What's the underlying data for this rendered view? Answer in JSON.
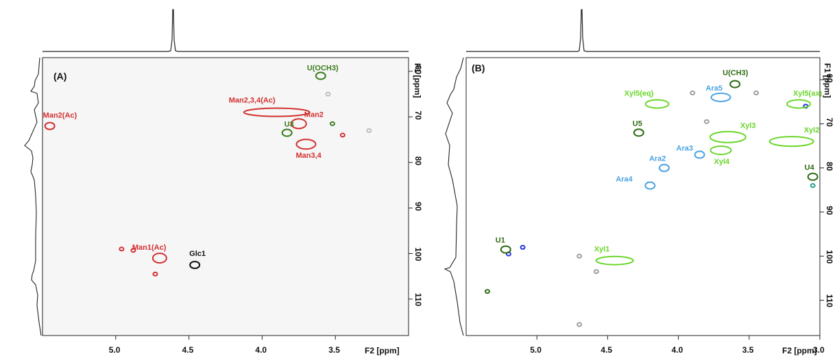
{
  "chart_data": [
    {
      "type": "scatter",
      "panel_label": "(A)",
      "xlabel": "F2 [ppm]",
      "ylabel": "F1 [ppm]",
      "xlim": [
        5.5,
        3.0
      ],
      "ylim": [
        57,
        118
      ],
      "x_ticks": [
        "5.0",
        "4.5",
        "4.0",
        "3.5"
      ],
      "y_ticks": [
        "60",
        "70",
        "80",
        "90",
        "100",
        "110"
      ],
      "peaks": [
        {
          "name": "U(OCH3)",
          "x": 3.6,
          "y": 61.0,
          "color": "#3a7d1e"
        },
        {
          "name": "Man2(Ac)",
          "x": 5.45,
          "y": 72.0,
          "color": "#d32f2f"
        },
        {
          "name": "Man2,3,4(Ac)",
          "x": 3.9,
          "y": 69.0,
          "color": "#d32f2f"
        },
        {
          "name": "Man2",
          "x": 3.75,
          "y": 71.5,
          "color": "#d32f2f"
        },
        {
          "name": "U3",
          "x": 3.83,
          "y": 73.5,
          "color": "#3a7d1e"
        },
        {
          "name": "Man3,4",
          "x": 3.7,
          "y": 76.0,
          "color": "#d32f2f"
        },
        {
          "name": "Man1(Ac)",
          "x": 4.7,
          "y": 101.0,
          "color": "#d32f2f"
        },
        {
          "name": "Glc1",
          "x": 4.46,
          "y": 102.5,
          "color": "#111111"
        }
      ],
      "unlabeled": [
        {
          "x": 3.55,
          "y": 65.0,
          "color": "#bdbdbd"
        },
        {
          "x": 3.27,
          "y": 73.0,
          "color": "#bdbdbd"
        },
        {
          "x": 3.52,
          "y": 71.5,
          "color": "#3a7d1e"
        },
        {
          "x": 3.45,
          "y": 74.0,
          "color": "#d32f2f"
        },
        {
          "x": 4.96,
          "y": 99.0,
          "color": "#d32f2f"
        },
        {
          "x": 4.88,
          "y": 99.3,
          "color": "#d32f2f"
        },
        {
          "x": 4.73,
          "y": 104.5,
          "color": "#d32f2f"
        }
      ]
    },
    {
      "type": "scatter",
      "panel_label": "(B)",
      "xlabel": "F2 [ppm]",
      "ylabel": "F1 [ppm]",
      "xlim": [
        5.5,
        3.0
      ],
      "ylim": [
        55,
        118
      ],
      "x_ticks": [
        "5.0",
        "4.5",
        "4.0",
        "3.5",
        "3.0"
      ],
      "y_ticks": [
        "60",
        "70",
        "80",
        "90",
        "100",
        "110"
      ],
      "peaks": [
        {
          "name": "U(CH3)",
          "x": 3.6,
          "y": 61.0,
          "color": "#2e6b12"
        },
        {
          "name": "Ara5",
          "x": 3.7,
          "y": 64.0,
          "color": "#4aa3e0"
        },
        {
          "name": "Xyl5(eq)",
          "x": 4.15,
          "y": 65.5,
          "color": "#6ad62a"
        },
        {
          "name": "Xyl5(ax)",
          "x": 3.15,
          "y": 65.5,
          "color": "#6ad62a"
        },
        {
          "name": "Xyl3",
          "x": 3.65,
          "y": 73.0,
          "color": "#6ad62a"
        },
        {
          "name": "Xyl2",
          "x": 3.2,
          "y": 74.0,
          "color": "#6ad62a"
        },
        {
          "name": "U5",
          "x": 4.28,
          "y": 72.0,
          "color": "#2e6b12"
        },
        {
          "name": "Ara3",
          "x": 3.85,
          "y": 77.0,
          "color": "#4aa3e0"
        },
        {
          "name": "Xyl4",
          "x": 3.7,
          "y": 76.0,
          "color": "#6ad62a"
        },
        {
          "name": "Ara2",
          "x": 4.1,
          "y": 80.0,
          "color": "#4aa3e0"
        },
        {
          "name": "Ara4",
          "x": 4.2,
          "y": 84.0,
          "color": "#4aa3e0"
        },
        {
          "name": "U4",
          "x": 3.05,
          "y": 82.0,
          "color": "#2e6b12"
        },
        {
          "name": "U1",
          "x": 5.22,
          "y": 98.5,
          "color": "#2e6b12"
        },
        {
          "name": "Xyl1",
          "x": 4.45,
          "y": 101.0,
          "color": "#6ad62a"
        }
      ],
      "unlabeled": [
        {
          "x": 3.9,
          "y": 63.0,
          "color": "#9e9e9e"
        },
        {
          "x": 3.45,
          "y": 63.0,
          "color": "#9e9e9e"
        },
        {
          "x": 3.8,
          "y": 69.5,
          "color": "#9e9e9e"
        },
        {
          "x": 3.1,
          "y": 66.0,
          "color": "#2233dd"
        },
        {
          "x": 3.05,
          "y": 84.0,
          "color": "#2e9e8e"
        },
        {
          "x": 5.1,
          "y": 98.0,
          "color": "#2233dd"
        },
        {
          "x": 5.2,
          "y": 99.5,
          "color": "#2233dd"
        },
        {
          "x": 4.7,
          "y": 100.0,
          "color": "#9e9e9e"
        },
        {
          "x": 4.58,
          "y": 103.5,
          "color": "#9e9e9e"
        },
        {
          "x": 5.35,
          "y": 108.0,
          "color": "#2e6b12"
        },
        {
          "x": 4.7,
          "y": 115.5,
          "color": "#9e9e9e"
        }
      ]
    }
  ]
}
